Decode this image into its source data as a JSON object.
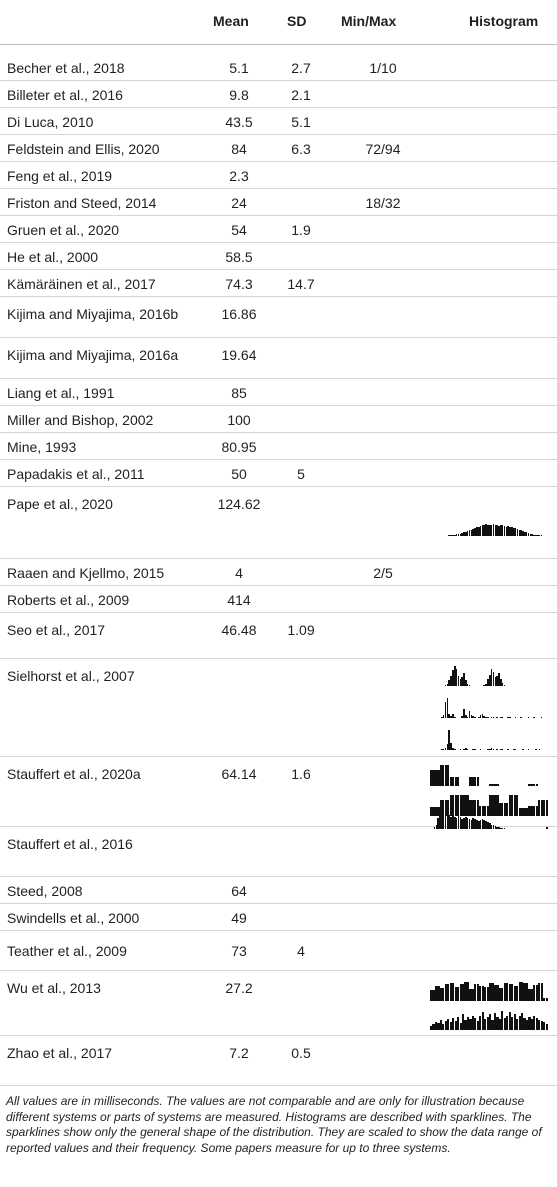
{
  "headers": {
    "study": "",
    "mean": "Mean",
    "sd": "SD",
    "minmax": "Min/Max",
    "histogram": "Histogram"
  },
  "rows": [
    {
      "study": "Becher et al., 2018",
      "mean": "5.1",
      "sd": "2.7",
      "minmax": "1/10"
    },
    {
      "study": "Billeter et al., 2016",
      "mean": "9.8",
      "sd": "2.1",
      "minmax": ""
    },
    {
      "study": "Di Luca, 2010",
      "mean": "43.5",
      "sd": "5.1",
      "minmax": ""
    },
    {
      "study": "Feldstein and Ellis, 2020",
      "mean": "84",
      "sd": "6.3",
      "minmax": "72/94"
    },
    {
      "study": "Feng et al., 2019",
      "mean": "2.3",
      "sd": "",
      "minmax": ""
    },
    {
      "study": "Friston and Steed, 2014",
      "mean": "24",
      "sd": "",
      "minmax": "18/32"
    },
    {
      "study": "Gruen et al., 2020",
      "mean": "54",
      "sd": "1.9",
      "minmax": ""
    },
    {
      "study": "He et al., 2000",
      "mean": "58.5",
      "sd": "",
      "minmax": ""
    },
    {
      "study": "Kämäräinen et al., 2017",
      "mean": "74.3",
      "sd": "14.7",
      "minmax": ""
    },
    {
      "study": "Kijima and Miyajima, 2016b",
      "mean": "16.86",
      "sd": "",
      "minmax": ""
    },
    {
      "study": "Kijima and Miyajima, 2016a",
      "mean": "19.64",
      "sd": "",
      "minmax": ""
    },
    {
      "study": "Liang et al., 1991",
      "mean": "85",
      "sd": "",
      "minmax": ""
    },
    {
      "study": "Miller and Bishop, 2002",
      "mean": "100",
      "sd": "",
      "minmax": ""
    },
    {
      "study": "Mine, 1993",
      "mean": "80.95",
      "sd": "",
      "minmax": ""
    },
    {
      "study": "Papadakis et al., 2011",
      "mean": "50",
      "sd": "5",
      "minmax": ""
    },
    {
      "study": "Pape et al., 2020",
      "mean": "124.62",
      "sd": "",
      "minmax": ""
    },
    {
      "study": "Raaen and Kjellmo, 2015",
      "mean": "4",
      "sd": "",
      "minmax": "2/5"
    },
    {
      "study": "Roberts et al., 2009",
      "mean": "414",
      "sd": "",
      "minmax": ""
    },
    {
      "study": "Seo et al., 2017",
      "mean": "46.48",
      "sd": "1.09",
      "minmax": ""
    },
    {
      "study": "Sielhorst et al., 2007",
      "mean": "",
      "sd": "",
      "minmax": ""
    },
    {
      "study": "Stauffert et al., 2020a",
      "mean": "64.14",
      "sd": "1.6",
      "minmax": ""
    },
    {
      "study": "Stauffert et al., 2016",
      "mean": "",
      "sd": "",
      "minmax": ""
    },
    {
      "study": "Steed, 2008",
      "mean": "64",
      "sd": "",
      "minmax": ""
    },
    {
      "study": "Swindells et al., 2000",
      "mean": "49",
      "sd": "",
      "minmax": ""
    },
    {
      "study": "Teather et al., 2009",
      "mean": "73",
      "sd": "4",
      "minmax": ""
    },
    {
      "study": "Wu et al., 2013",
      "mean": "27.2",
      "sd": "",
      "minmax": ""
    },
    {
      "study": "Zhao et al., 2017",
      "mean": "7.2",
      "sd": "0.5",
      "minmax": ""
    }
  ],
  "sparklines": [
    {
      "study": "Pape et al., 2020",
      "lines": [
        [
          0,
          0,
          0,
          0,
          0,
          0,
          0,
          0,
          0,
          0,
          1,
          1,
          2,
          2,
          3,
          3,
          4,
          5,
          6,
          7,
          8,
          9,
          10,
          11,
          12,
          14,
          15,
          16,
          17,
          18,
          19,
          18,
          17,
          18,
          19,
          18,
          17,
          16,
          18,
          17,
          16,
          15,
          16,
          15,
          14,
          13,
          12,
          11,
          10,
          9,
          8,
          7,
          6,
          5,
          4,
          3,
          2,
          2,
          1,
          1,
          1,
          0,
          0,
          0
        ]
      ]
    },
    {
      "study": "Sielhorst et al., 2007",
      "lines": [
        [
          0,
          0,
          0,
          0,
          0,
          0,
          0,
          0,
          1,
          2,
          5,
          9,
          14,
          18,
          15,
          9,
          6,
          8,
          12,
          5,
          2,
          1,
          0,
          0,
          0,
          0,
          0,
          0,
          0,
          1,
          2,
          6,
          10,
          15,
          13,
          8,
          9,
          12,
          6,
          3,
          1,
          0,
          0,
          0,
          0,
          0,
          0,
          0,
          0,
          0,
          0,
          0,
          0,
          0,
          0,
          0,
          0,
          0,
          0,
          0,
          0,
          0,
          0,
          0
        ],
        [
          0,
          0,
          0,
          0,
          0,
          0,
          1,
          3,
          14,
          18,
          4,
          2,
          4,
          1,
          0,
          0,
          0,
          2,
          8,
          3,
          1,
          6,
          3,
          2,
          1,
          0,
          1,
          3,
          4,
          2,
          1,
          1,
          0,
          1,
          1,
          0,
          1,
          0,
          1,
          1,
          0,
          0,
          1,
          1,
          0,
          0,
          1,
          0,
          0,
          1,
          0,
          0,
          0,
          1,
          0,
          0,
          1,
          0,
          0,
          0,
          1,
          0,
          0,
          0
        ],
        [
          0,
          0,
          0,
          0,
          0,
          0,
          1,
          1,
          2,
          5,
          18,
          6,
          2,
          1,
          0,
          0,
          1,
          0,
          1,
          2,
          1,
          0,
          0,
          1,
          1,
          0,
          0,
          1,
          0,
          0,
          0,
          1,
          1,
          2,
          1,
          0,
          1,
          0,
          1,
          1,
          0,
          0,
          1,
          0,
          0,
          1,
          1,
          0,
          0,
          0,
          1,
          0,
          0,
          1,
          0,
          0,
          0,
          1,
          0,
          1,
          0,
          0,
          0,
          0
        ]
      ]
    },
    {
      "study": "Stauffert et al., 2020a",
      "lines": [
        [
          14,
          14,
          14,
          14,
          18,
          18,
          18,
          18,
          8,
          8,
          8,
          8,
          0,
          0,
          0,
          0,
          8,
          8,
          8,
          8,
          0,
          0,
          0,
          0,
          2,
          2,
          2,
          2,
          0,
          0,
          0,
          0,
          0,
          0,
          0,
          0,
          0,
          0,
          0,
          0,
          2,
          2,
          2,
          2,
          0,
          0,
          0,
          0
        ],
        [
          7,
          7,
          7,
          7,
          12,
          12,
          12,
          12,
          16,
          16,
          16,
          16,
          16,
          16,
          16,
          16,
          12,
          12,
          12,
          12,
          8,
          8,
          8,
          8,
          16,
          16,
          16,
          16,
          10,
          10,
          10,
          10,
          16,
          16,
          16,
          16,
          6,
          6,
          6,
          6,
          8,
          8,
          8,
          8,
          12,
          12,
          12,
          12
        ]
      ]
    },
    {
      "study": "Stauffert et al., 2016",
      "lines": [
        [
          0,
          0,
          2,
          4,
          10,
          18,
          15,
          16,
          14,
          12,
          13,
          11,
          12,
          11,
          10,
          12,
          11,
          9,
          10,
          11,
          10,
          9,
          8,
          10,
          9,
          8,
          7,
          8,
          9,
          8,
          7,
          6,
          5,
          4,
          4,
          3,
          2,
          2,
          1,
          1,
          1,
          0,
          0,
          0,
          0,
          0,
          0,
          0,
          0,
          0,
          0,
          0,
          0,
          0,
          0,
          0,
          0,
          0,
          0,
          0,
          0,
          0,
          0,
          2
        ]
      ]
    },
    {
      "study": "Wu et al., 2013",
      "lines": [
        [
          10,
          10,
          14,
          14,
          12,
          12,
          16,
          16,
          17,
          17,
          13,
          13,
          16,
          16,
          18,
          18,
          11,
          11,
          16,
          16,
          14,
          14,
          13,
          13,
          17,
          17,
          15,
          15,
          12,
          12,
          17,
          17,
          16,
          16,
          14,
          14,
          18,
          18,
          17,
          17,
          11,
          11,
          15,
          15,
          17,
          17,
          3,
          3
        ],
        [
          4,
          5,
          7,
          6,
          9,
          5,
          8,
          10,
          7,
          11,
          8,
          12,
          6,
          14,
          9,
          12,
          10,
          13,
          11,
          8,
          13,
          16,
          10,
          12,
          14,
          9,
          15,
          12,
          10,
          17,
          11,
          13,
          16,
          12,
          14,
          10,
          13,
          15,
          11,
          9,
          12,
          10,
          13,
          11,
          9,
          8,
          7,
          5
        ]
      ]
    }
  ],
  "footnote": "All values are in milliseconds. The values are not comparable and are only for illustration because different systems or parts of systems are measured. Histograms are described with sparklines. The sparklines show only the general shape of the distribution. They are scaled to show the data range of reported values and their frequency. Some papers measure for up to three systems."
}
